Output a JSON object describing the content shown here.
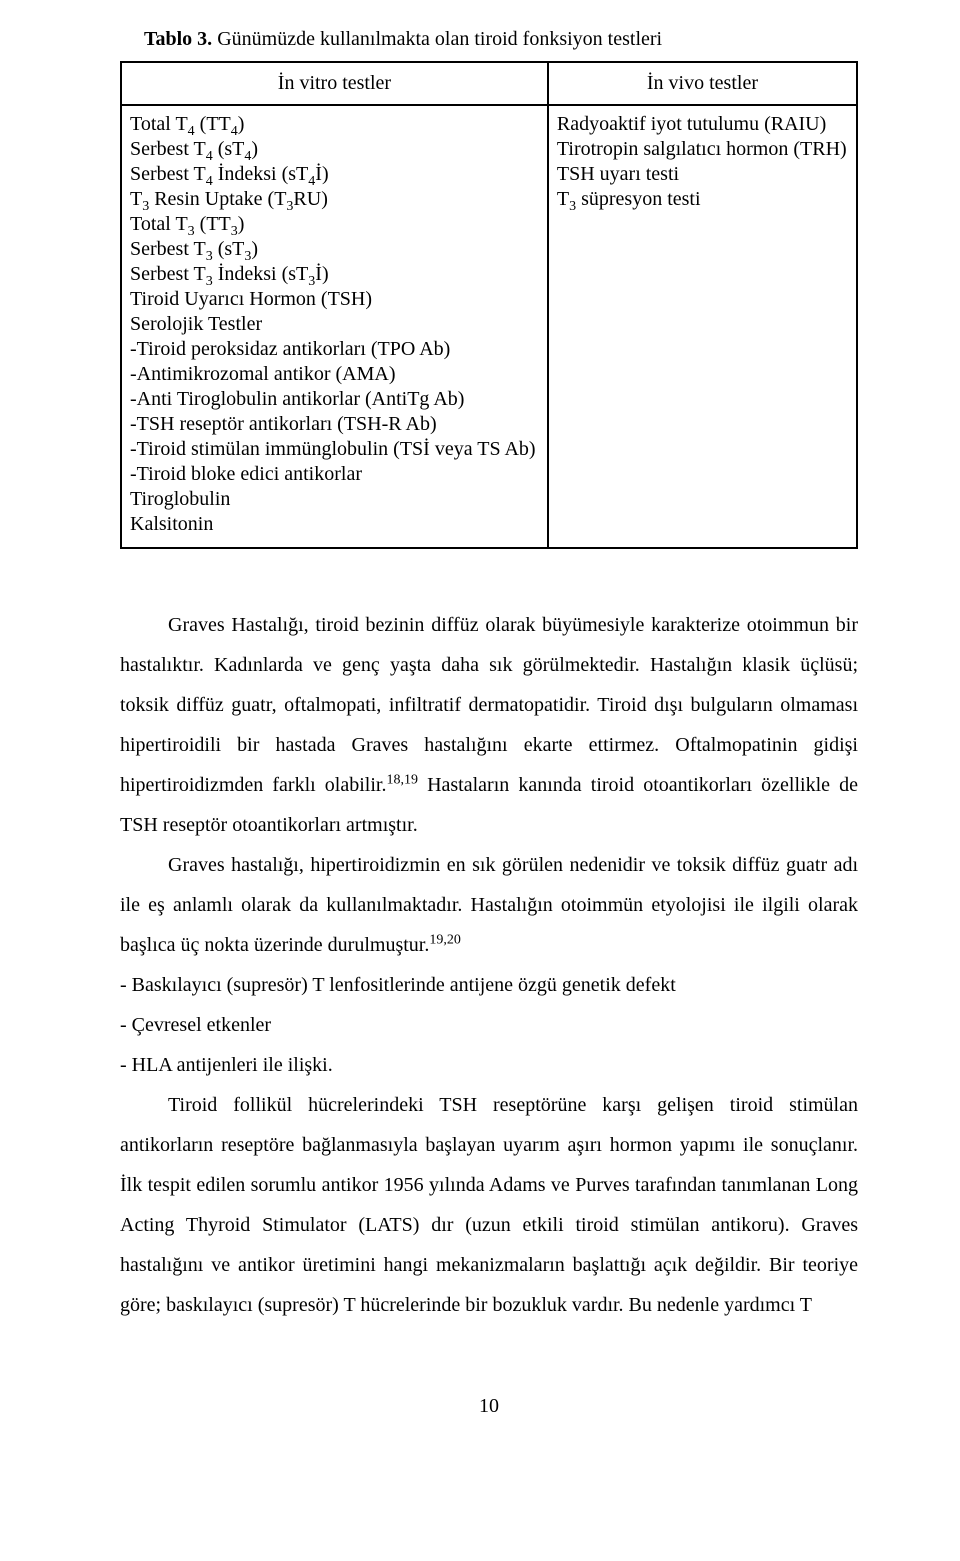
{
  "table": {
    "label": "Tablo 3.",
    "caption": " Günümüzde kullanılmakta olan tiroid fonksiyon testleri",
    "headers": [
      "İn vitro testler",
      "İn vivo testler"
    ],
    "left": [
      "Total T<sub>4</sub>  (TT<sub>4</sub>)",
      "Serbest T<sub>4</sub>  (sT<sub>4</sub>)",
      "Serbest T<sub>4</sub> İndeksi   (sT<sub>4</sub>İ)",
      "T<sub>3</sub> Resin Uptake   (T<sub>3</sub>RU)",
      "Total T<sub>3</sub>  (TT<sub>3</sub>)",
      "Serbest T<sub>3</sub>  (sT<sub>3</sub>)",
      "Serbest T<sub>3</sub> İndeksi  (sT<sub>3</sub>İ)",
      "Tiroid Uyarıcı Hormon  (TSH)",
      "Serolojik Testler",
      "-Tiroid peroksidaz antikorları  (TPO Ab)",
      "-Antimikrozomal antikor  (AMA)",
      "-Anti Tiroglobulin antikorlar  (AntiTg Ab)",
      "-TSH reseptör antikorları  (TSH-R Ab)",
      "-Tiroid stimülan immünglobulin  (TSİ veya TS Ab)",
      "-Tiroid bloke edici antikorlar",
      "Tiroglobulin",
      "Kalsitonin"
    ],
    "right": [
      "Radyoaktif iyot tutulumu  (RAIU)",
      "Tirotropin salgılatıcı hormon  (TRH)",
      "TSH uyarı testi",
      "T<sub>3</sub> süpresyon testi"
    ]
  },
  "paragraphs": {
    "p1": "Graves Hastalığı, tiroid bezinin diffüz olarak büyümesiyle karakterize otoimmun bir hastalıktır. Kadınlarda ve genç yaşta daha sık görülmektedir. Hastalığın klasik üçlüsü; toksik diffüz guatr, oftalmopati, infiltratif dermatopatidir. Tiroid dışı bulguların olmaması hipertiroidili bir hastada Graves hastalığını ekarte ettirmez. Oftalmopatinin gidişi hipertiroidizmden farklı olabilir.<sup>18,19</sup> Hastaların kanında tiroid otoantikorları özellikle de TSH reseptör otoantikorları artmıştır.",
    "p2": "Graves hastalığı, hipertiroidizmin en sık görülen nedenidir ve toksik diffüz guatr adı ile eş anlamlı olarak da kullanılmaktadır. Hastalığın otoimmün etyolojisi ile ilgili olarak başlıca üç nokta üzerinde durulmuştur.<sup>19,20</sup>",
    "b1": "- Baskılayıcı (supresör) T lenfositlerinde antijene özgü genetik defekt",
    "b2": "- Çevresel etkenler",
    "b3": "- HLA antijenleri ile ilişki.",
    "p3": "Tiroid follikül hücrelerindeki TSH reseptörüne karşı gelişen tiroid stimülan antikorların reseptöre bağlanmasıyla başlayan uyarım aşırı hormon yapımı ile sonuçlanır. İlk tespit edilen sorumlu antikor 1956 yılında Adams ve Purves tarafından tanımlanan Long Acting Thyroid Stimulator (LATS) dır (uzun etkili tiroid stimülan antikoru). Graves hastalığını ve antikor üretimini hangi mekanizmaların başlattığı açık değildir. Bir teoriye göre; baskılayıcı (supresör) T hücrelerinde bir bozukluk vardır. Bu nedenle yardımcı T"
  },
  "pagenum": "10"
}
